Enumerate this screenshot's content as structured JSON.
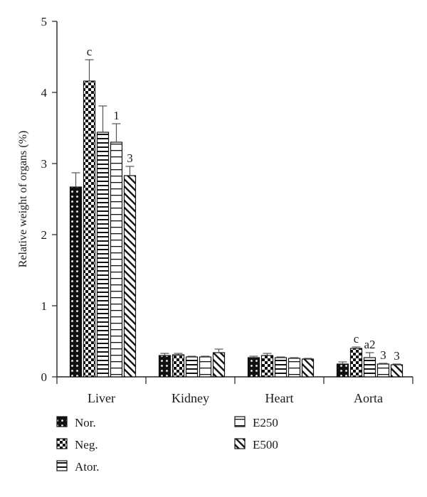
{
  "chart_data": {
    "type": "bar",
    "title": "",
    "xlabel": "",
    "ylabel": "Relative weight of organs (%)",
    "ylim": [
      0,
      5
    ],
    "yticks": [
      0,
      1,
      2,
      3,
      4,
      5
    ],
    "grid": false,
    "legend_position": "bottom",
    "categories": [
      "Liver",
      "Kidney",
      "Heart",
      "Aorta"
    ],
    "series": [
      {
        "name": "Nor.",
        "pattern": "dots",
        "values": [
          2.67,
          0.3,
          0.27,
          0.18
        ],
        "errors": [
          0.2,
          0.03,
          0.02,
          0.03
        ],
        "annotations": [
          "",
          "",
          "",
          ""
        ]
      },
      {
        "name": "Neg.",
        "pattern": "checker",
        "values": [
          4.16,
          0.31,
          0.3,
          0.4
        ],
        "errors": [
          0.3,
          0.02,
          0.03,
          0.02
        ],
        "annotations": [
          "c",
          "",
          "",
          "c"
        ]
      },
      {
        "name": "Ator.",
        "pattern": "h-lines",
        "values": [
          3.44,
          0.28,
          0.27,
          0.27
        ],
        "errors": [
          0.37,
          0.01,
          0.01,
          0.07
        ],
        "annotations": [
          "",
          "",
          "",
          "a2"
        ]
      },
      {
        "name": "E250",
        "pattern": "boxed-lines",
        "values": [
          3.3,
          0.28,
          0.26,
          0.18
        ],
        "errors": [
          0.26,
          0.01,
          0.01,
          0.01
        ],
        "annotations": [
          "1",
          "",
          "",
          "3"
        ]
      },
      {
        "name": "E500",
        "pattern": "diagonal",
        "values": [
          2.83,
          0.34,
          0.25,
          0.17
        ],
        "errors": [
          0.13,
          0.05,
          0.01,
          0.01
        ],
        "annotations": [
          "3",
          "",
          "",
          "3"
        ]
      }
    ],
    "colors": {
      "ink": "#111111",
      "error_bar": "#555555",
      "background": "#ffffff"
    }
  }
}
